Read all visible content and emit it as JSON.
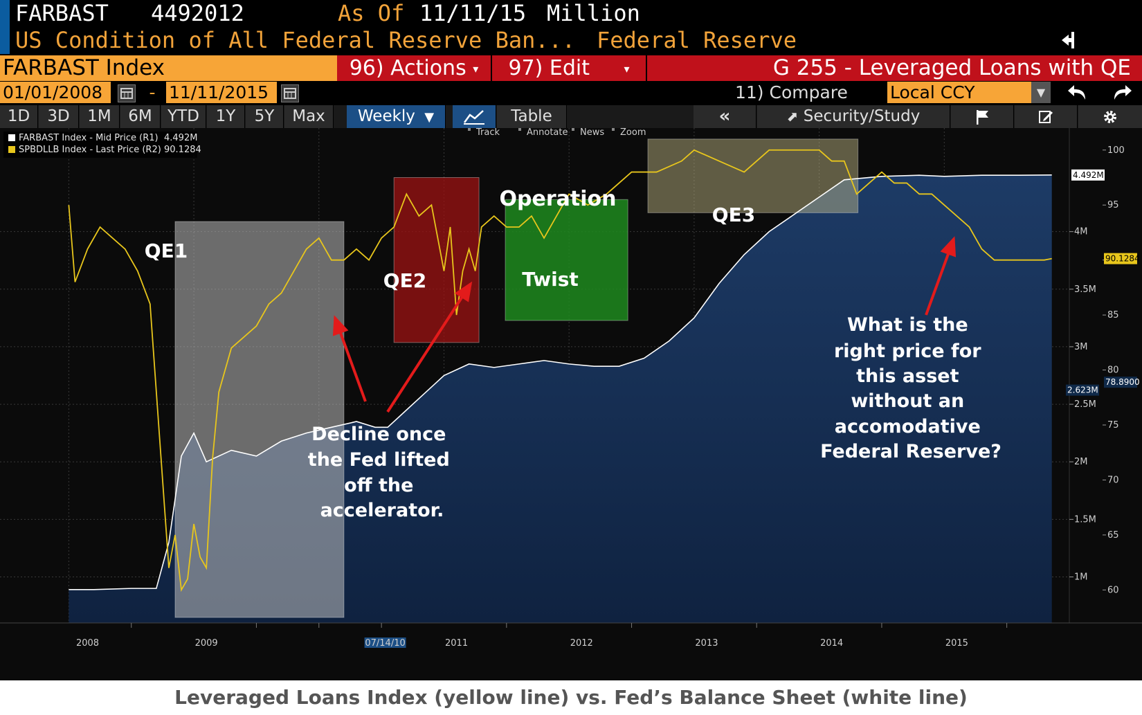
{
  "header": {
    "ticker": "FARBAST",
    "value": "4492012",
    "as_of_label": "As Of",
    "as_of_date": "11/11/15",
    "unit": "Million",
    "description": "US Condition of All Federal Reserve Ban...",
    "source": "Federal Reserve"
  },
  "toolbar": {
    "security": "FARBAST Index",
    "actions_label": "96) Actions",
    "edit_label": "97) Edit",
    "chart_title": "G 255 - Leveraged Loans with QE",
    "start_date": "01/01/2008",
    "date_sep": "-",
    "end_date": "11/11/2015",
    "compare_label": "11) Compare",
    "currency": "Local CCY"
  },
  "tabs": [
    "1D",
    "3D",
    "1M",
    "6M",
    "YTD",
    "1Y",
    "5Y",
    "Max"
  ],
  "frequency": "Weekly",
  "table_label": "Table",
  "security_study_label": "Security/Study",
  "chart_tools": [
    "Track",
    "Annotate",
    "News",
    "Zoom"
  ],
  "caption": "Leveraged Loans Index (yellow line) vs. Fed’s Balance Sheet (white line)",
  "chart_data": {
    "type": "line",
    "legend": [
      {
        "label": "FARBAST Index - Mid Price (R1)",
        "value": "4.492M",
        "color": "#ffffff"
      },
      {
        "label": "SPBDLLB Index - Last Price (R2)",
        "value": "90.1284",
        "color": "#e8c61c"
      }
    ],
    "x_tick_labels": [
      "2008",
      "2009",
      "07/14/10",
      "2011",
      "2012",
      "2013",
      "2014",
      "2015"
    ],
    "r1_ticks": [
      "1M",
      "1.5M",
      "2M",
      "2.5M",
      "3M",
      "3.5M",
      "4M"
    ],
    "r1_ylim": [
      0.6,
      4.9
    ],
    "r2_ticks": [
      "60",
      "65",
      "70",
      "75",
      "80",
      "85",
      "90",
      "95",
      "100"
    ],
    "r2_ylim": [
      57,
      102
    ],
    "r1_last_label": "4.492M",
    "r1_mid_label": "2.623M",
    "r2_last_label": "90.1284",
    "r2_mid_label": "78.8900",
    "series": [
      {
        "name": "FARBAST Index - Mid Price (R1)",
        "unit": "Million USD",
        "color": "#ffffff",
        "x": [
          2008.0,
          2008.2,
          2008.5,
          2008.7,
          2008.8,
          2008.9,
          2009.0,
          2009.1,
          2009.3,
          2009.5,
          2009.7,
          2009.9,
          2010.1,
          2010.3,
          2010.45,
          2010.55,
          2010.7,
          2010.85,
          2011.0,
          2011.2,
          2011.4,
          2011.6,
          2011.8,
          2012.0,
          2012.2,
          2012.4,
          2012.6,
          2012.8,
          2013.0,
          2013.2,
          2013.4,
          2013.6,
          2013.8,
          2014.0,
          2014.2,
          2014.5,
          2014.8,
          2015.0,
          2015.3,
          2015.6,
          2015.86
        ],
        "values": [
          0.89,
          0.89,
          0.9,
          0.9,
          1.3,
          2.05,
          2.25,
          2.0,
          2.1,
          2.05,
          2.18,
          2.25,
          2.3,
          2.35,
          2.3,
          2.3,
          2.45,
          2.6,
          2.75,
          2.85,
          2.82,
          2.85,
          2.88,
          2.85,
          2.83,
          2.83,
          2.9,
          3.05,
          3.25,
          3.55,
          3.8,
          4.0,
          4.15,
          4.3,
          4.45,
          4.48,
          4.49,
          4.48,
          4.49,
          4.49,
          4.492
        ]
      },
      {
        "name": "SPBDLLB Index - Last Price (R2)",
        "unit": "Index",
        "color": "#e8c61c",
        "x": [
          2008.0,
          2008.05,
          2008.15,
          2008.25,
          2008.35,
          2008.45,
          2008.55,
          2008.65,
          2008.75,
          2008.8,
          2008.85,
          2008.9,
          2008.95,
          2009.0,
          2009.05,
          2009.1,
          2009.15,
          2009.2,
          2009.25,
          2009.3,
          2009.4,
          2009.5,
          2009.6,
          2009.7,
          2009.8,
          2009.9,
          2010.0,
          2010.1,
          2010.2,
          2010.3,
          2010.4,
          2010.5,
          2010.6,
          2010.7,
          2010.8,
          2010.9,
          2011.0,
          2011.05,
          2011.1,
          2011.15,
          2011.2,
          2011.25,
          2011.3,
          2011.4,
          2011.5,
          2011.6,
          2011.7,
          2011.8,
          2011.9,
          2012.0,
          2012.15,
          2012.3,
          2012.5,
          2012.7,
          2012.9,
          2013.0,
          2013.2,
          2013.4,
          2013.6,
          2013.8,
          2014.0,
          2014.1,
          2014.2,
          2014.3,
          2014.4,
          2014.5,
          2014.6,
          2014.7,
          2014.8,
          2014.9,
          2015.0,
          2015.1,
          2015.2,
          2015.3,
          2015.4,
          2015.5,
          2015.6,
          2015.7,
          2015.8,
          2015.86
        ],
        "values": [
          95,
          88,
          91,
          93,
          92,
          91,
          89,
          86,
          70,
          62,
          65,
          60,
          61,
          66,
          63,
          62,
          72,
          78,
          80,
          82,
          83,
          84,
          86,
          87,
          89,
          91,
          92,
          90,
          90,
          91,
          90,
          92,
          93,
          96,
          94,
          95,
          89,
          93,
          85,
          89,
          91,
          89,
          93,
          94,
          93,
          93,
          94,
          92,
          94,
          96,
          95,
          96,
          98,
          98,
          99,
          100,
          99,
          98,
          100,
          100,
          100,
          99,
          99,
          96,
          97,
          98,
          97,
          97,
          96,
          96,
          95,
          94,
          93,
          91,
          90,
          90,
          90,
          90,
          90,
          90.1284
        ]
      }
    ],
    "annotations": {
      "boxes": [
        {
          "label": "QE1",
          "color": "#bdbdbd",
          "x_start": 2008.85,
          "x_end": 2010.2
        },
        {
          "label": "QE2",
          "color": "#9e1313",
          "x_start": 2010.6,
          "x_end": 2011.28
        },
        {
          "label": "Operation Twist",
          "label_top": "Operation",
          "label_bottom": "Twist",
          "color": "#1e8a1e",
          "x_start": 2011.49,
          "x_end": 2012.47
        },
        {
          "label": "QE3",
          "color": "#c8bf8a",
          "x_start": 2012.63,
          "x_end": 2014.31
        }
      ],
      "texts": [
        {
          "id": "decline",
          "text": "Decline once the Fed lifted off the accelerator."
        },
        {
          "id": "question",
          "text": "What is the right price for this asset without an accomodative Federal Reserve?"
        }
      ]
    }
  }
}
